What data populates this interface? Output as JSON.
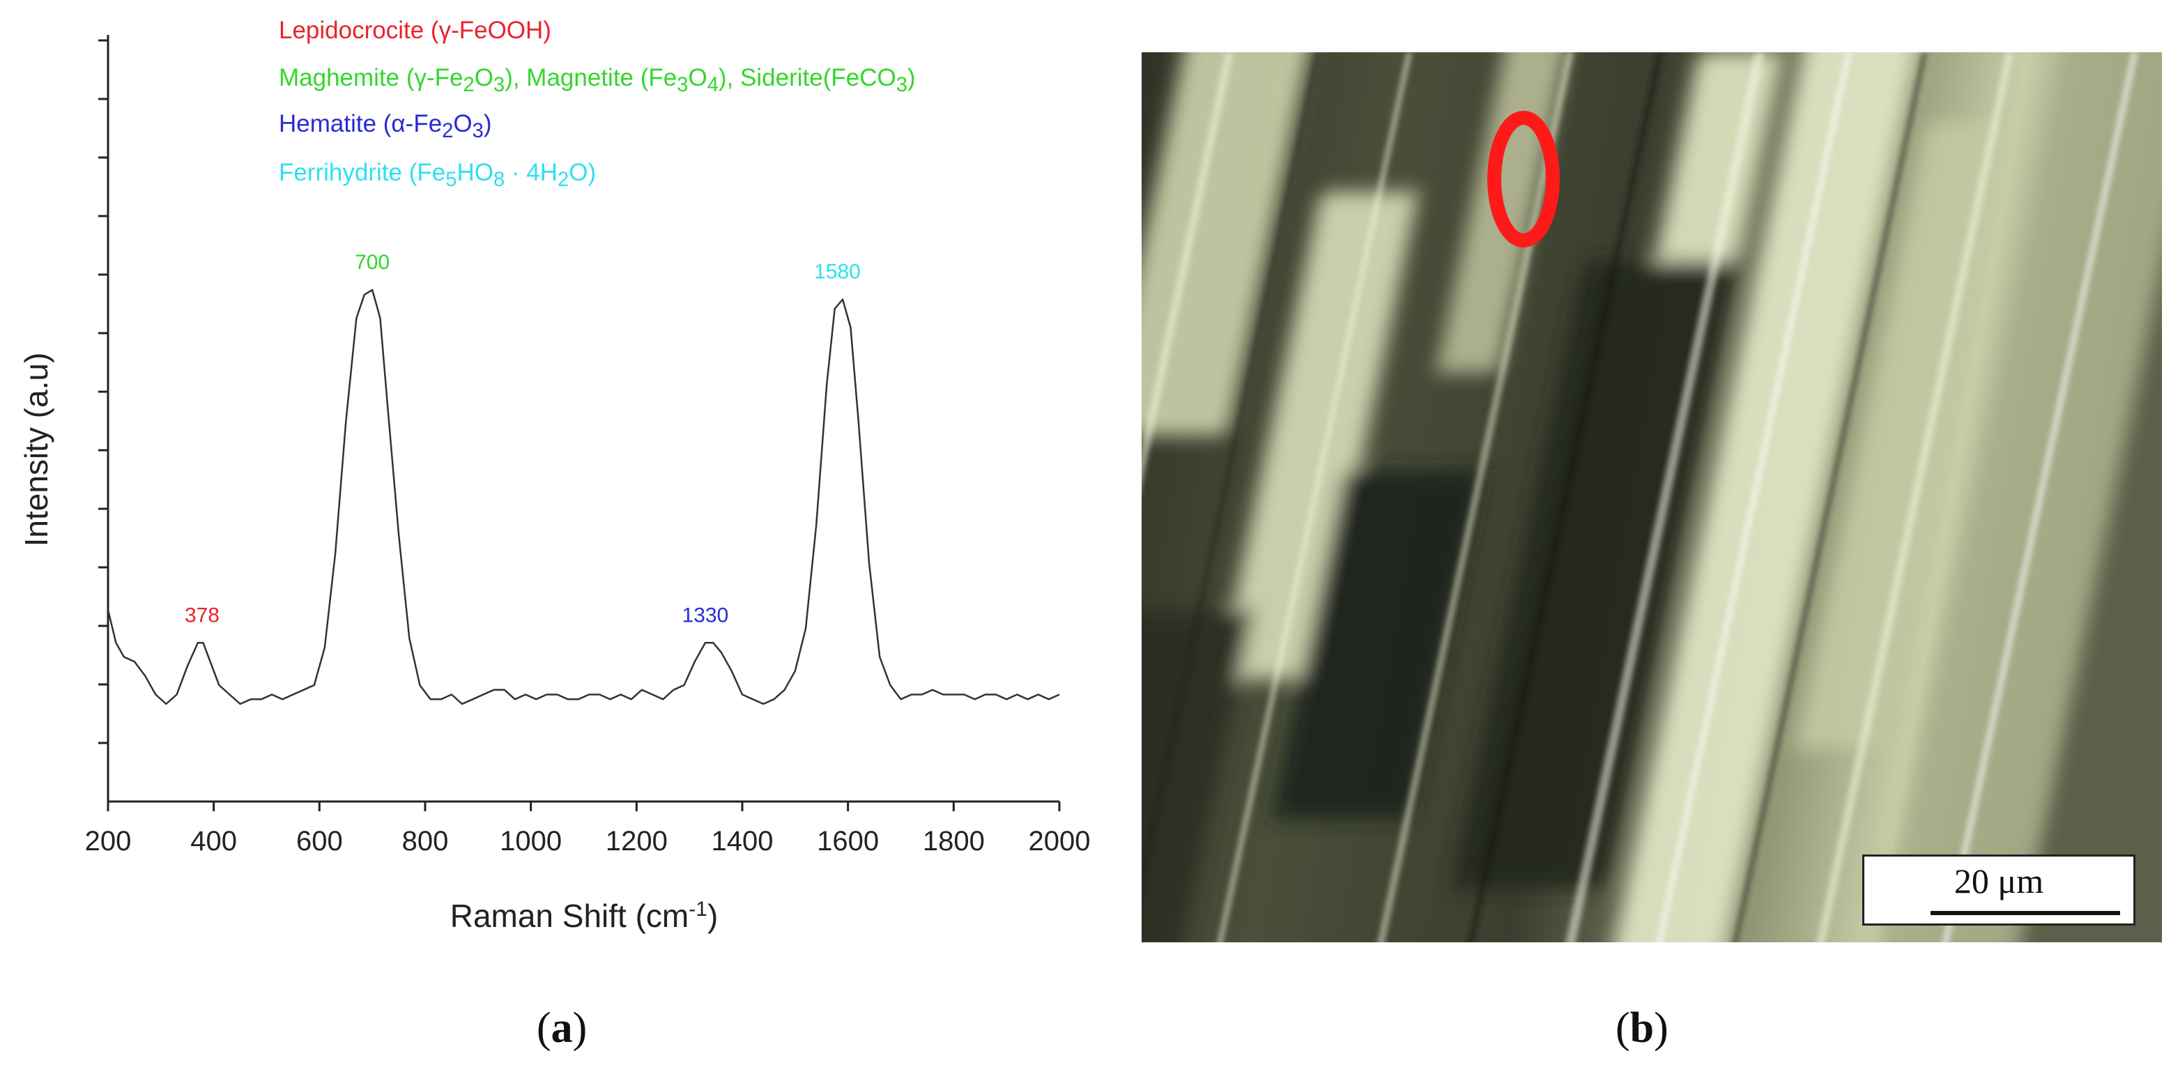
{
  "chart_data": {
    "type": "line",
    "xlabel": "Raman Shift (cm",
    "xlabel_sup": "-1",
    "xlabel_close": ")",
    "ylabel": "Intensity (a.u)",
    "xlim": [
      200,
      2000
    ],
    "ylim": [
      0,
      1
    ],
    "x_ticks": [
      200,
      400,
      600,
      800,
      1000,
      1200,
      1400,
      1600,
      1800,
      2000
    ],
    "grid": false,
    "peaks": [
      {
        "x": 378,
        "label": "378",
        "color": "#e8242c"
      },
      {
        "x": 700,
        "label": "700",
        "color": "#33d62c"
      },
      {
        "x": 1330,
        "label": "1330",
        "color": "#2a2ad4"
      },
      {
        "x": 1580,
        "label": "1580",
        "color": "#2fe0ef"
      }
    ],
    "series": [
      {
        "color": "#333333",
        "x": [
          200,
          215,
          230,
          250,
          270,
          290,
          310,
          330,
          350,
          370,
          380,
          390,
          410,
          430,
          450,
          470,
          490,
          510,
          530,
          550,
          570,
          590,
          610,
          630,
          650,
          670,
          685,
          700,
          715,
          730,
          750,
          770,
          790,
          810,
          830,
          850,
          870,
          890,
          910,
          930,
          950,
          970,
          990,
          1010,
          1030,
          1050,
          1070,
          1090,
          1110,
          1130,
          1150,
          1170,
          1190,
          1210,
          1230,
          1250,
          1270,
          1290,
          1310,
          1330,
          1345,
          1360,
          1380,
          1400,
          1420,
          1440,
          1460,
          1480,
          1500,
          1520,
          1540,
          1560,
          1575,
          1590,
          1605,
          1620,
          1640,
          1660,
          1680,
          1700,
          1720,
          1740,
          1760,
          1780,
          1800,
          1820,
          1840,
          1860,
          1880,
          1900,
          1920,
          1940,
          1960,
          1980,
          2000
        ],
        "y": [
          0.2,
          0.13,
          0.1,
          0.09,
          0.06,
          0.02,
          0.0,
          0.02,
          0.08,
          0.13,
          0.13,
          0.1,
          0.04,
          0.02,
          0.0,
          0.01,
          0.01,
          0.02,
          0.01,
          0.02,
          0.03,
          0.04,
          0.12,
          0.32,
          0.6,
          0.82,
          0.87,
          0.88,
          0.82,
          0.62,
          0.36,
          0.14,
          0.04,
          0.01,
          0.01,
          0.02,
          0.0,
          0.01,
          0.02,
          0.03,
          0.03,
          0.01,
          0.02,
          0.01,
          0.02,
          0.02,
          0.01,
          0.01,
          0.02,
          0.02,
          0.01,
          0.02,
          0.01,
          0.03,
          0.02,
          0.01,
          0.03,
          0.04,
          0.09,
          0.13,
          0.13,
          0.11,
          0.07,
          0.02,
          0.01,
          0.0,
          0.01,
          0.03,
          0.07,
          0.16,
          0.38,
          0.68,
          0.84,
          0.86,
          0.8,
          0.6,
          0.3,
          0.1,
          0.04,
          0.01,
          0.02,
          0.02,
          0.03,
          0.02,
          0.02,
          0.02,
          0.01,
          0.02,
          0.02,
          0.01,
          0.02,
          0.01,
          0.02,
          0.01,
          0.02
        ]
      }
    ]
  },
  "legend": {
    "lepidocrocite": {
      "text": "Lepidocrocite (γ-FeOOH)",
      "color": "#e8242c"
    },
    "green": {
      "color": "#33d62c",
      "p1": "Maghemite (γ-Fe",
      "s1": "2",
      "p2": "O",
      "s2": "3",
      "p3": "), Magnetite (Fe",
      "s3": "3",
      "p4": "O",
      "s4": "4",
      "p5": "), Siderite(FeCO",
      "s5": "3",
      "p6": ")"
    },
    "hematite": {
      "color": "#2a2ad4",
      "p1": "Hematite (α-Fe",
      "s1": "2",
      "p2": "O",
      "s2": "3",
      "p3": ")"
    },
    "ferrihydrite": {
      "color": "#2fe0ef",
      "p1": "Ferrihydrite (Fe",
      "s1": "5",
      "p2": "HO",
      "s2": "8",
      "p3": " · 4H",
      "s3": "2",
      "p4": "O)"
    }
  },
  "panel_labels": {
    "a": "a",
    "b": "b"
  },
  "micrograph": {
    "scale_label": "20 μm",
    "marker_color": "#ff1a1a"
  }
}
